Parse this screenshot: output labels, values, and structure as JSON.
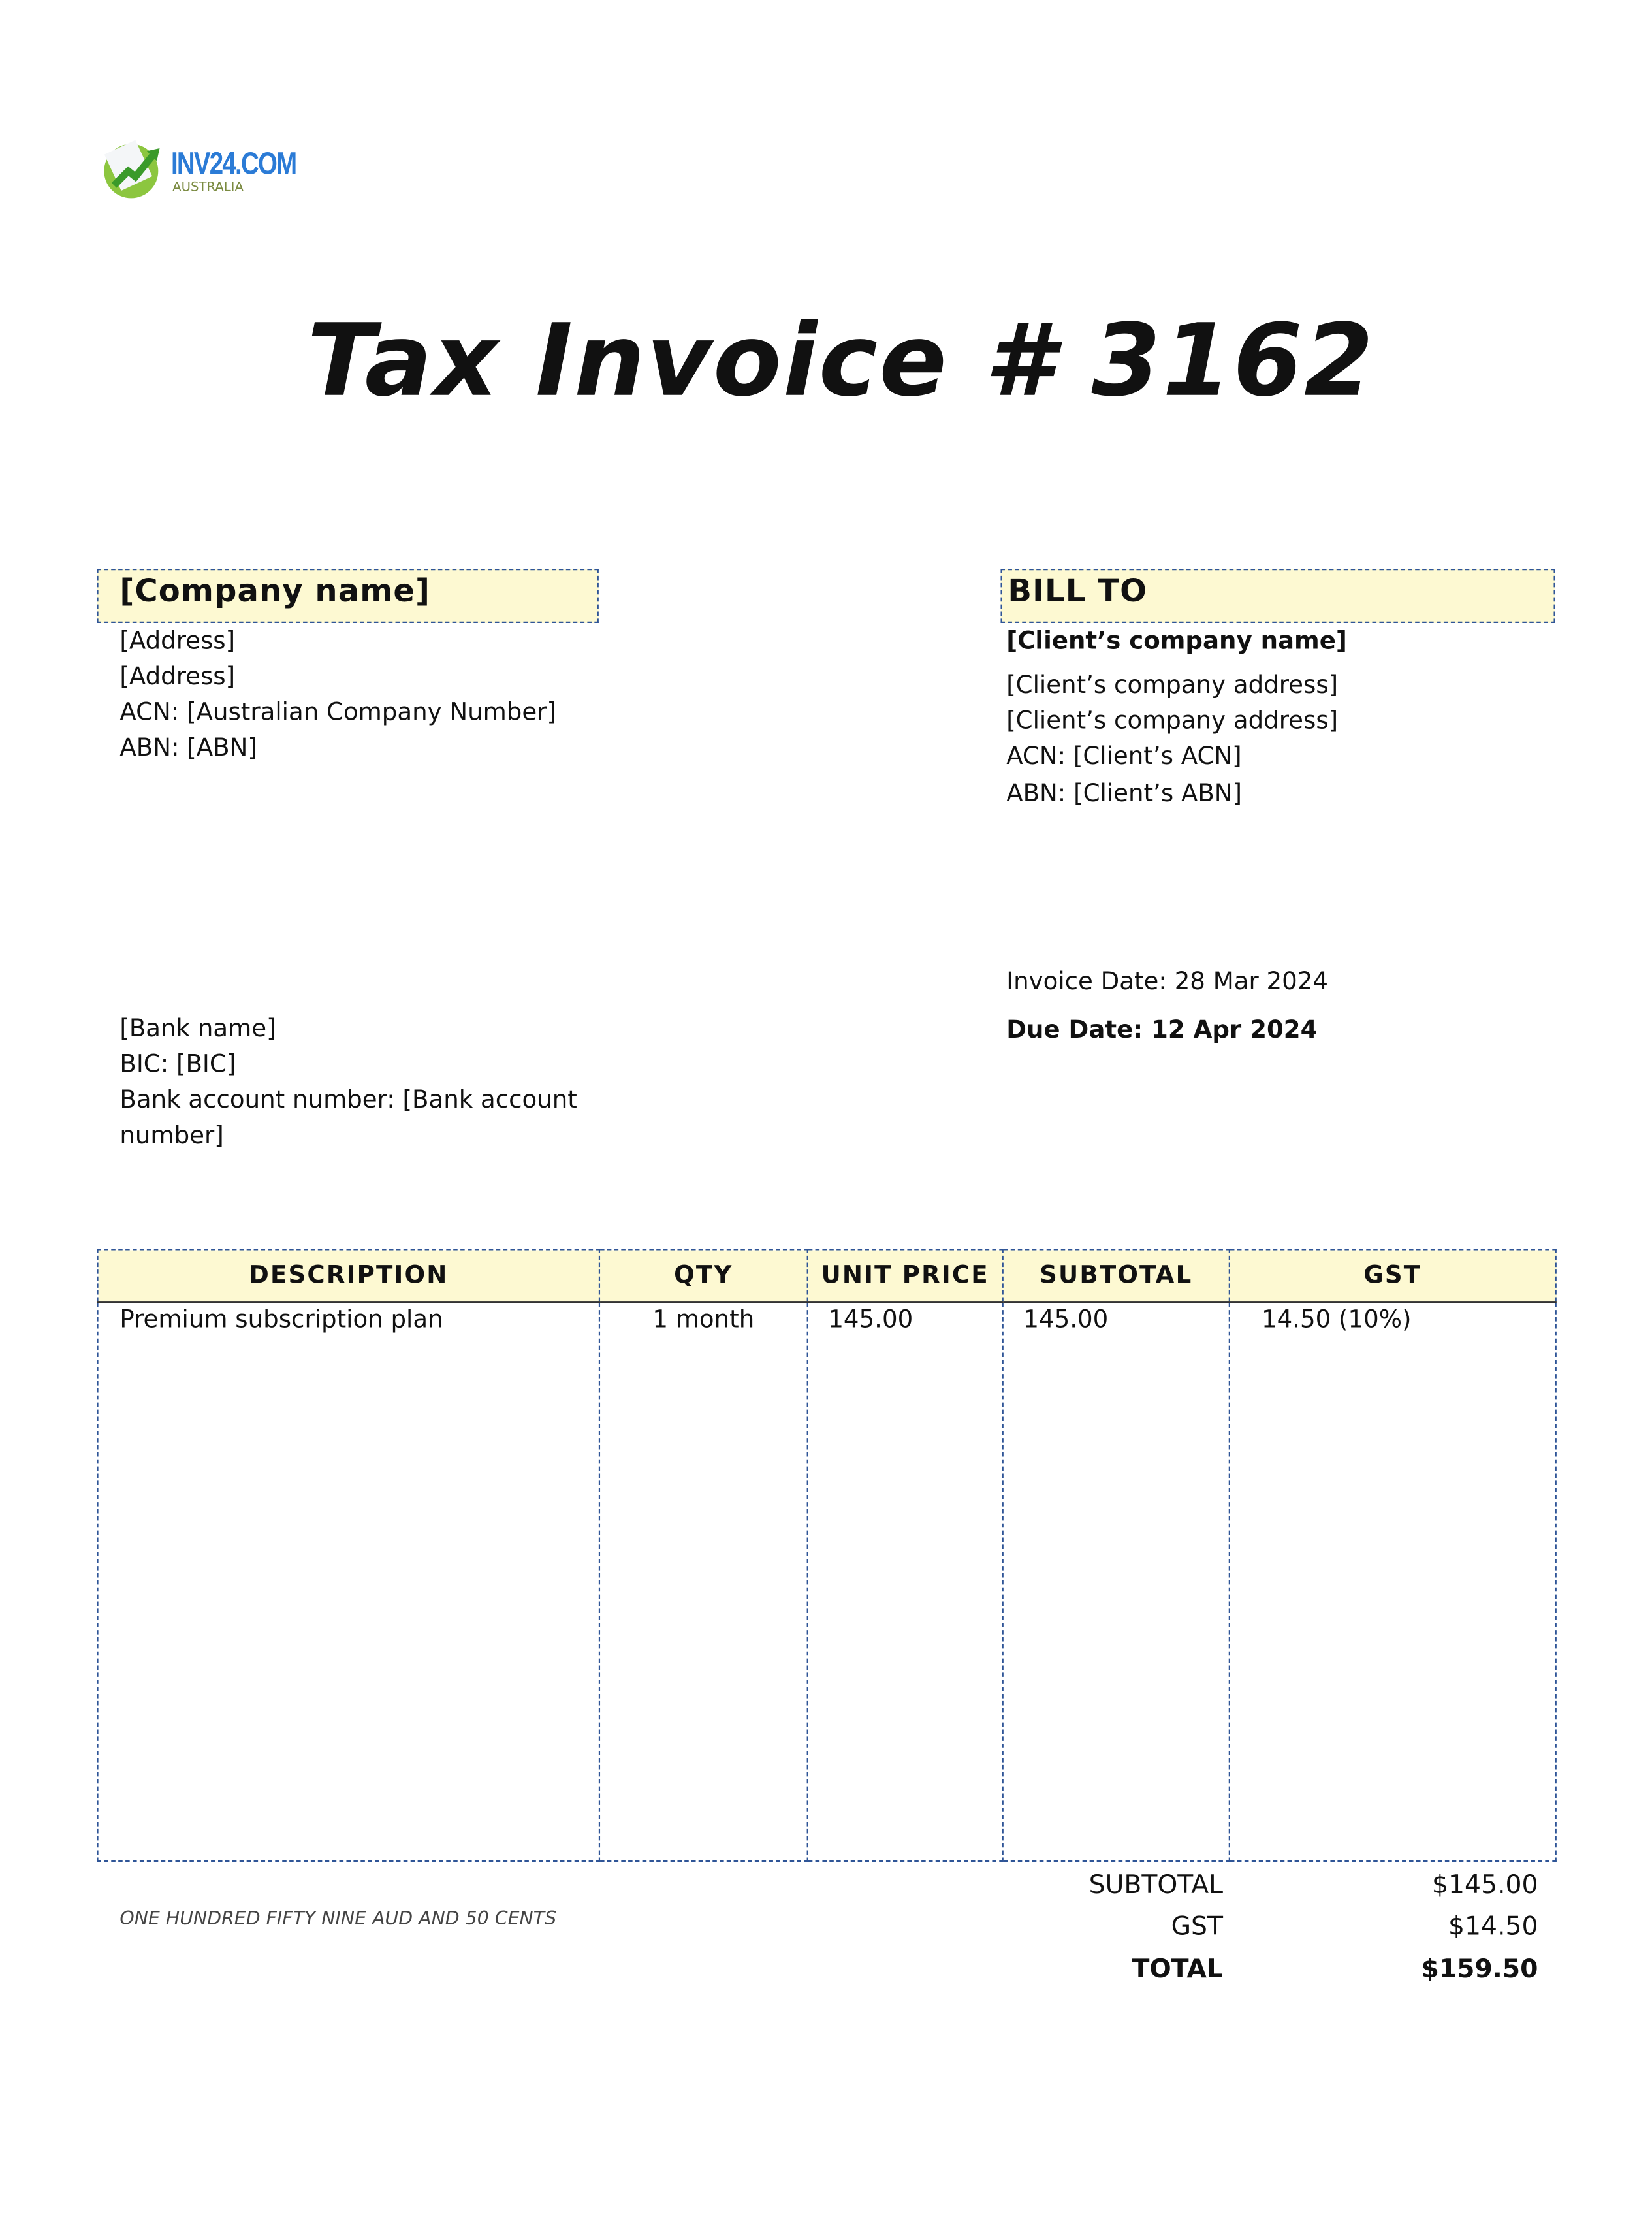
{
  "logo": {
    "name": "INV24.COM",
    "sub": "AUSTRALIA",
    "colors": {
      "blue": "#2b7bd6",
      "green": "#8cc63f"
    }
  },
  "title": "Tax Invoice # 3162",
  "company": {
    "name": "[Company name]",
    "lines": [
      "[Address]",
      "[Address]",
      "ACN: [Australian Company Number]",
      "ABN: [ABN]"
    ]
  },
  "bill_to": {
    "heading": "BILL TO",
    "client_name": "[Client’s company name]",
    "lines": [
      "[Client’s company address]",
      "[Client’s company address]",
      "ACN: [Client’s ACN]",
      "ABN: [Client’s ABN]"
    ]
  },
  "dates": {
    "invoice_label": "Invoice Date:",
    "invoice_value": "28 Mar 2024",
    "due_label": "Due Date:",
    "due_value": "12 Apr 2024"
  },
  "bank": {
    "lines": [
      "[Bank name]",
      "BIC: [BIC]",
      "Bank account number: [Bank account",
      "number]"
    ]
  },
  "table": {
    "headers": [
      "DESCRIPTION",
      "QTY",
      "UNIT PRICE",
      "SUBTOTAL",
      "GST"
    ],
    "rows": [
      [
        "Premium subscription plan",
        "1 month",
        "145.00",
        "145.00",
        "14.50 (10%)"
      ]
    ]
  },
  "amount_words": "ONE HUNDRED FIFTY NINE AUD AND 50 CENTS",
  "totals": {
    "subtotal_label": "SUBTOTAL",
    "subtotal": "$145.00",
    "gst_label": "GST",
    "gst": "$14.50",
    "total_label": "TOTAL",
    "total": "$159.50"
  }
}
